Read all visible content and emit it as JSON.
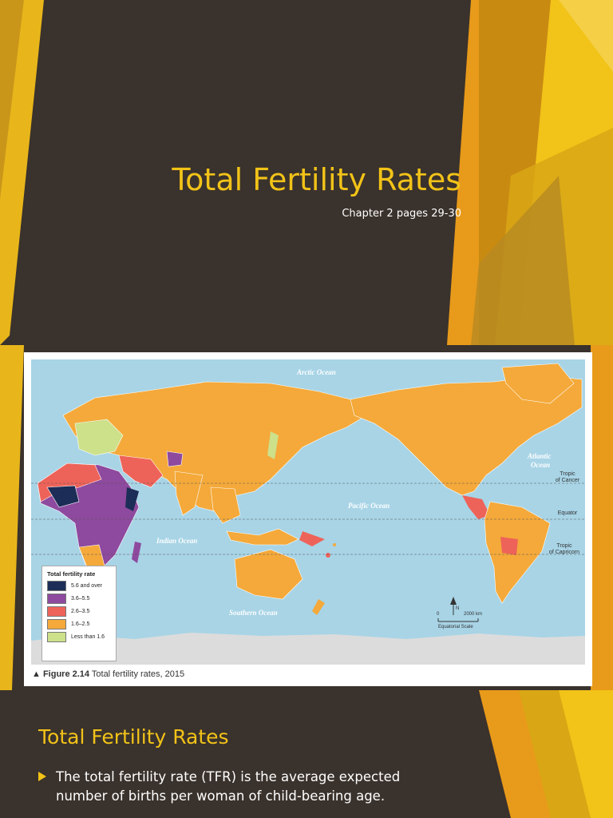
{
  "slide1": {
    "title": "Total Fertility Rates",
    "subtitle": "Chapter 2 pages 29-30"
  },
  "figure": {
    "caption_number": "Figure 2.14",
    "caption_text": "Total fertility rates, 2015",
    "legend": {
      "title": "Total fertility rate",
      "items": [
        {
          "label": "5.6 and over",
          "color": "#1c2d57"
        },
        {
          "label": "3.6–5.5",
          "color": "#8e4a9e"
        },
        {
          "label": "2.6–3.5",
          "color": "#ee6359"
        },
        {
          "label": "1.6–2.5",
          "color": "#f4a93a"
        },
        {
          "label": "Less than 1.6",
          "color": "#cde08a"
        }
      ]
    },
    "oceans": {
      "arctic": "Arctic Ocean",
      "atlantic_1": "Atlantic",
      "atlantic_2": "Ocean",
      "pacific": "Pacific Ocean",
      "indian": "Indian Ocean",
      "southern": "Southern Ocean"
    },
    "lines": {
      "cancer_1": "Tropic",
      "cancer_2": "of Cancer",
      "equator": "Equator",
      "capricorn_1": "Tropic",
      "capricorn_2": "of Capricorn"
    },
    "scale": {
      "zero": "0",
      "km": "2000 km",
      "equatorial": "Equatorial Scale",
      "north": "N"
    }
  },
  "slide3": {
    "heading": "Total Fertility Rates",
    "bullet": "The total fertility rate (TFR) is the average expected number of births per woman of child-bearing age."
  },
  "colors": {
    "background": "#3a322c",
    "accent": "#f2c318",
    "ocean": "#a8d4e6",
    "land": "#f4a93a"
  }
}
